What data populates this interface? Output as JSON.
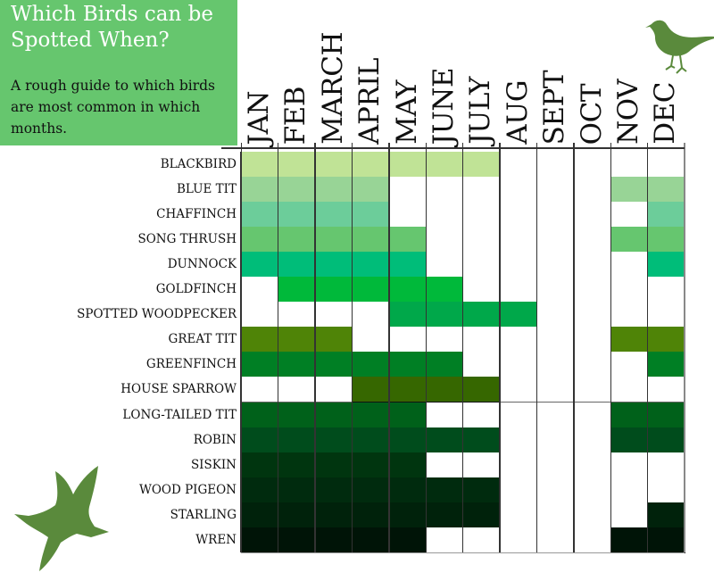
{
  "header": {
    "title": "Which Birds can be Spotted When?",
    "subtitle": "A rough guide to which birds are most common in which months."
  },
  "icons": [
    "robin-silhouette-icon",
    "flying-bird-silhouette-icon"
  ],
  "colors": {
    "title_box": "#66c66e",
    "bird_silhouette": "#5a8a3c",
    "empty_cell": "#ffffff"
  },
  "chart_data": {
    "type": "heatmap",
    "title": "Which Birds can be Spotted When?",
    "subtitle": "A rough guide to which birds are most common in which months.",
    "columns": [
      "JAN",
      "FEB",
      "MARCH",
      "APRIL",
      "MAY",
      "JUNE",
      "JULY",
      "AUG",
      "SEPT",
      "OCT",
      "NOV",
      "DEC"
    ],
    "rows": [
      {
        "bird": "BLACKBIRD",
        "color": "#c0e396",
        "months": [
          1,
          1,
          1,
          1,
          1,
          1,
          1,
          0,
          0,
          0,
          0,
          0
        ]
      },
      {
        "bird": "BLUE TIT",
        "color": "#98d496",
        "months": [
          1,
          1,
          1,
          1,
          0,
          0,
          0,
          0,
          0,
          0,
          1,
          1
        ]
      },
      {
        "bird": "CHAFFINCH",
        "color": "#6ccd9a",
        "months": [
          1,
          1,
          1,
          1,
          0,
          0,
          0,
          0,
          0,
          0,
          0,
          1
        ]
      },
      {
        "bird": "SONG THRUSH",
        "color": "#66c66f",
        "months": [
          1,
          1,
          1,
          1,
          1,
          0,
          0,
          0,
          0,
          0,
          1,
          1
        ]
      },
      {
        "bird": "DUNNOCK",
        "color": "#00bd79",
        "months": [
          1,
          1,
          1,
          1,
          1,
          0,
          0,
          0,
          0,
          0,
          0,
          1
        ]
      },
      {
        "bird": "GOLDFINCH",
        "color": "#00b93a",
        "months": [
          0,
          1,
          1,
          1,
          1,
          1,
          0,
          0,
          0,
          0,
          0,
          0
        ]
      },
      {
        "bird": "SPOTTED WOODPECKER",
        "color": "#00a84a",
        "months": [
          0,
          0,
          0,
          0,
          1,
          1,
          1,
          1,
          0,
          0,
          0,
          0
        ]
      },
      {
        "bird": "GREAT TIT",
        "color": "#4f8407",
        "months": [
          1,
          1,
          1,
          0,
          0,
          0,
          0,
          0,
          0,
          0,
          1,
          1
        ]
      },
      {
        "bird": "GREENFINCH",
        "color": "#007f24",
        "months": [
          1,
          1,
          1,
          1,
          1,
          1,
          0,
          0,
          0,
          0,
          0,
          1
        ]
      },
      {
        "bird": "HOUSE SPARROW",
        "color": "#366700",
        "months": [
          0,
          0,
          0,
          1,
          1,
          1,
          1,
          0,
          0,
          0,
          0,
          0
        ]
      },
      {
        "bird": "LONG-TAILED TIT",
        "color": "#00611a",
        "months": [
          1,
          1,
          1,
          1,
          1,
          0,
          0,
          0,
          0,
          0,
          1,
          1
        ]
      },
      {
        "bird": "ROBIN",
        "color": "#004c1c",
        "months": [
          1,
          1,
          1,
          1,
          1,
          1,
          1,
          0,
          0,
          0,
          1,
          1
        ]
      },
      {
        "bird": "SISKIN",
        "color": "#00350f",
        "months": [
          1,
          1,
          1,
          1,
          1,
          0,
          0,
          0,
          0,
          0,
          0,
          0
        ]
      },
      {
        "bird": "WOOD PIGEON",
        "color": "#002b0e",
        "months": [
          1,
          1,
          1,
          1,
          1,
          1,
          1,
          0,
          0,
          0,
          0,
          0
        ]
      },
      {
        "bird": "STARLING",
        "color": "#00220b",
        "months": [
          1,
          1,
          1,
          1,
          1,
          1,
          1,
          0,
          0,
          0,
          0,
          1
        ]
      },
      {
        "bird": "WREN",
        "color": "#001407",
        "months": [
          1,
          1,
          1,
          1,
          1,
          0,
          0,
          0,
          0,
          0,
          1,
          1
        ]
      }
    ],
    "legend": "none",
    "grid": true
  }
}
